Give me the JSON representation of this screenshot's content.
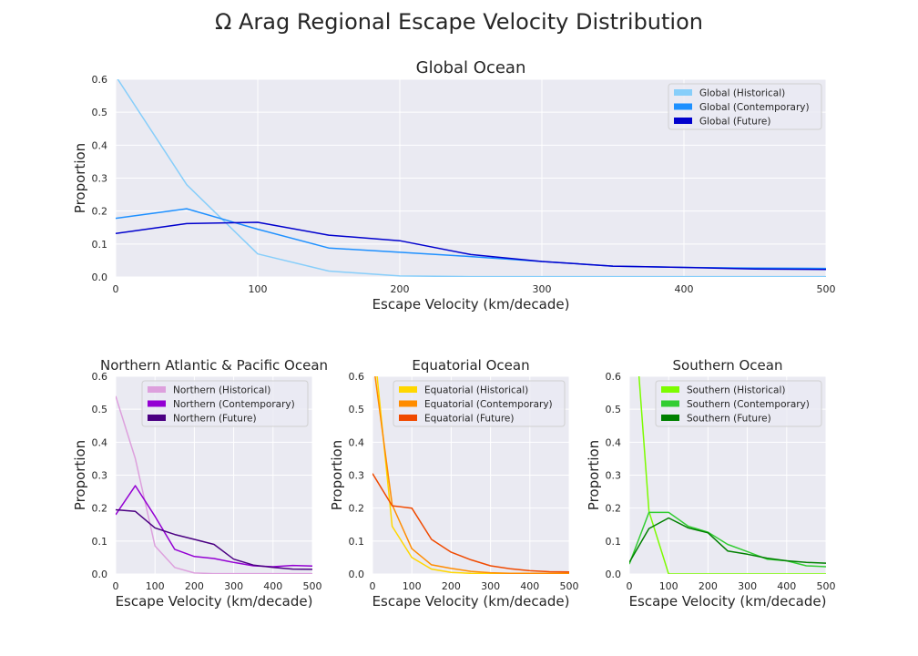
{
  "figure": {
    "suptitle": "Ω Arag Regional Escape Velocity Distribution"
  },
  "chart_data": [
    {
      "type": "line",
      "title": "Global Ocean",
      "xlabel": "Escape Velocity (km/decade)",
      "ylabel": "Proportion",
      "xlim": [
        0,
        500
      ],
      "ylim": [
        0,
        0.6
      ],
      "xticks": [
        0,
        100,
        200,
        300,
        400,
        500
      ],
      "yticks": [
        0.0,
        0.1,
        0.2,
        0.3,
        0.4,
        0.5,
        0.6
      ],
      "xtick_labels": [
        "0",
        "100",
        "200",
        "300",
        "400",
        "500"
      ],
      "ytick_labels": [
        "0.0",
        "0.1",
        "0.2",
        "0.3",
        "0.4",
        "0.5",
        "0.6"
      ],
      "grid": true,
      "legend_position": "top-right",
      "x": [
        0,
        50,
        100,
        150,
        200,
        250,
        300,
        350,
        400,
        450,
        500
      ],
      "series": [
        {
          "name": "Global (Historical)",
          "color": "#87CEFA",
          "values": [
            0.61,
            0.28,
            0.07,
            0.018,
            0.003,
            0.001,
            0.001,
            0.001,
            0.001,
            0.001,
            0.001
          ]
        },
        {
          "name": "Global (Contemporary)",
          "color": "#1E90FF",
          "values": [
            0.178,
            0.207,
            0.145,
            0.088,
            0.075,
            0.062,
            0.047,
            0.033,
            0.029,
            0.027,
            0.026
          ]
        },
        {
          "name": "Global (Future)",
          "color": "#0000CD",
          "values": [
            0.132,
            0.162,
            0.166,
            0.127,
            0.11,
            0.068,
            0.047,
            0.033,
            0.029,
            0.024,
            0.023
          ]
        }
      ]
    },
    {
      "type": "line",
      "title": "Northern Atlantic & Pacific Ocean",
      "xlabel": "Escape Velocity (km/decade)",
      "ylabel": "Proportion",
      "xlim": [
        0,
        500
      ],
      "ylim": [
        0,
        0.6
      ],
      "xticks": [
        0,
        100,
        200,
        300,
        400,
        500
      ],
      "yticks": [
        0.0,
        0.1,
        0.2,
        0.3,
        0.4,
        0.5,
        0.6
      ],
      "xtick_labels": [
        "0",
        "100",
        "200",
        "300",
        "400",
        "500"
      ],
      "ytick_labels": [
        "0.0",
        "0.1",
        "0.2",
        "0.3",
        "0.4",
        "0.5",
        "0.6"
      ],
      "grid": true,
      "legend_position": "top-right",
      "x": [
        0,
        50,
        100,
        150,
        200,
        250,
        300,
        350,
        400,
        450,
        500
      ],
      "series": [
        {
          "name": "Northern (Historical)",
          "color": "#DDA0DD",
          "values": [
            0.54,
            0.35,
            0.085,
            0.02,
            0.003,
            0.001,
            0.001,
            0.001,
            0.001,
            0.001,
            0.001
          ]
        },
        {
          "name": "Northern (Contemporary)",
          "color": "#9400D3",
          "values": [
            0.18,
            0.268,
            0.175,
            0.075,
            0.053,
            0.047,
            0.035,
            0.025,
            0.022,
            0.026,
            0.024
          ]
        },
        {
          "name": "Northern (Future)",
          "color": "#4B0082",
          "values": [
            0.195,
            0.19,
            0.14,
            0.12,
            0.105,
            0.09,
            0.045,
            0.027,
            0.02,
            0.015,
            0.014
          ]
        }
      ]
    },
    {
      "type": "line",
      "title": "Equatorial Ocean",
      "xlabel": "Escape Velocity (km/decade)",
      "ylabel": "Proportion",
      "xlim": [
        0,
        500
      ],
      "ylim": [
        0,
        0.6
      ],
      "xticks": [
        0,
        100,
        200,
        300,
        400,
        500
      ],
      "yticks": [
        0.0,
        0.1,
        0.2,
        0.3,
        0.4,
        0.5,
        0.6
      ],
      "xtick_labels": [
        "0",
        "100",
        "200",
        "300",
        "400",
        "500"
      ],
      "ytick_labels": [
        "0.0",
        "0.1",
        "0.2",
        "0.3",
        "0.4",
        "0.5",
        "0.6"
      ],
      "grid": true,
      "legend_position": "top-right",
      "x": [
        0,
        50,
        100,
        150,
        200,
        250,
        300,
        350,
        400,
        450,
        500
      ],
      "series": [
        {
          "name": "Equatorial (Historical)",
          "color": "#FFD700",
          "values": [
            0.74,
            0.145,
            0.05,
            0.015,
            0.005,
            0.002,
            0.001,
            0.001,
            0.001,
            0.001,
            0.001
          ]
        },
        {
          "name": "Equatorial (Contemporary)",
          "color": "#FF8C00",
          "values": [
            0.66,
            0.21,
            0.077,
            0.028,
            0.017,
            0.008,
            0.004,
            0.002,
            0.002,
            0.002,
            0.002
          ]
        },
        {
          "name": "Equatorial (Future)",
          "color": "#F04A00",
          "values": [
            0.305,
            0.207,
            0.2,
            0.105,
            0.066,
            0.043,
            0.025,
            0.016,
            0.01,
            0.007,
            0.006
          ]
        }
      ]
    },
    {
      "type": "line",
      "title": "Southern Ocean",
      "xlabel": "Escape Velocity (km/decade)",
      "ylabel": "Proportion",
      "xlim": [
        0,
        500
      ],
      "ylim": [
        0,
        0.6
      ],
      "xticks": [
        0,
        100,
        200,
        300,
        400,
        500
      ],
      "yticks": [
        0.0,
        0.1,
        0.2,
        0.3,
        0.4,
        0.5,
        0.6
      ],
      "xtick_labels": [
        "0",
        "100",
        "200",
        "300",
        "400",
        "500"
      ],
      "ytick_labels": [
        "0.0",
        "0.1",
        "0.2",
        "0.3",
        "0.4",
        "0.5",
        "0.6"
      ],
      "grid": true,
      "legend_position": "top-right",
      "x": [
        0,
        50,
        100,
        150,
        200,
        250,
        300,
        350,
        400,
        450,
        500
      ],
      "series": [
        {
          "name": "Southern (Historical)",
          "color": "#7CFC00",
          "x": [
            0,
            50,
            100,
            150,
            200,
            250,
            300,
            350,
            400,
            450,
            500
          ],
          "values": [
            1.0,
            0.19,
            0.0,
            0.0,
            0.0,
            0.0,
            0.0,
            0.0,
            0.0,
            0.0,
            0.0
          ]
        },
        {
          "name": "Southern (Contemporary)",
          "color": "#32CD32",
          "values": [
            0.03,
            0.187,
            0.187,
            0.145,
            0.127,
            0.09,
            0.068,
            0.045,
            0.04,
            0.025,
            0.022
          ]
        },
        {
          "name": "Southern (Future)",
          "color": "#008000",
          "values": [
            0.035,
            0.138,
            0.17,
            0.14,
            0.125,
            0.07,
            0.06,
            0.048,
            0.04,
            0.035,
            0.033
          ]
        }
      ]
    }
  ]
}
